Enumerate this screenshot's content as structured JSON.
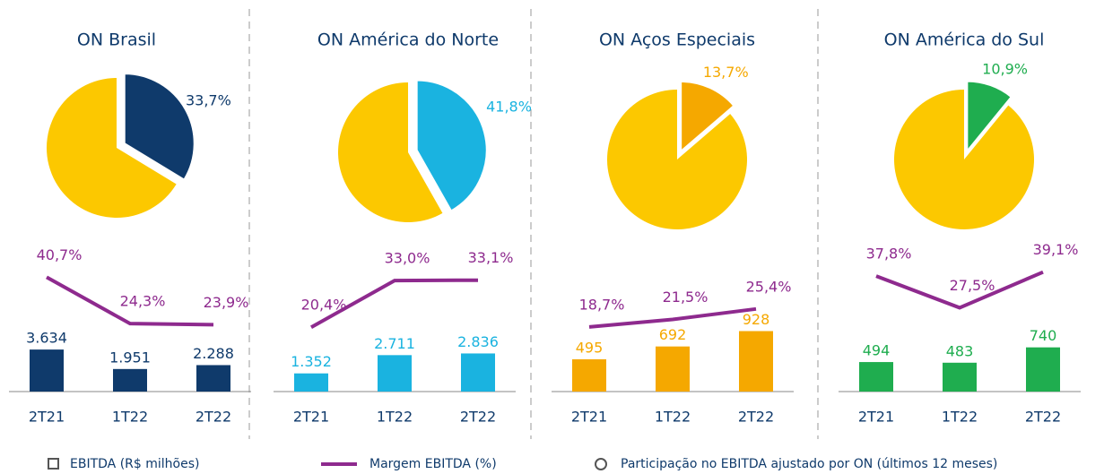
{
  "chart_data": [
    {
      "type": "pie",
      "title": "ON Brasil",
      "values": [
        33.7
      ],
      "value_labels": [
        "33,7%"
      ],
      "color": "#0f3a6b",
      "rest_color": "#fcc800"
    },
    {
      "type": "line",
      "values": [
        40.7,
        24.3,
        23.9
      ],
      "value_labels": [
        "40,7%",
        "24,3%",
        "23,9%"
      ],
      "color": "#8e2a8e",
      "ylim": [
        12,
        50
      ]
    },
    {
      "type": "bar",
      "categories": [
        "2T21",
        "1T22",
        "2T22"
      ],
      "values": [
        3634,
        1951,
        2288
      ],
      "value_labels": [
        "3.634",
        "1.951",
        "2.288"
      ],
      "color": "#0f3a6b",
      "ylim": [
        0,
        9300
      ]
    },
    {
      "type": "pie",
      "title": "ON América do Norte",
      "values": [
        41.8
      ],
      "value_labels": [
        "41,8%"
      ],
      "color": "#1ab3e0",
      "rest_color": "#fcc800"
    },
    {
      "type": "line",
      "values": [
        20.4,
        33.0,
        33.1
      ],
      "value_labels": [
        "20,4%",
        "33,0%",
        "33,1%"
      ],
      "color": "#8e2a8e",
      "ylim": [
        12,
        41
      ]
    },
    {
      "type": "bar",
      "categories": [
        "2T21",
        "1T22",
        "2T22"
      ],
      "values": [
        1352,
        2711,
        2836
      ],
      "value_labels": [
        "1.352",
        "2.711",
        "2.836"
      ],
      "color": "#1ab3e0",
      "ylim": [
        0,
        8000
      ]
    },
    {
      "type": "pie",
      "title": "ON Aços Especiais",
      "values": [
        13.7
      ],
      "value_labels": [
        "13,7%"
      ],
      "color": "#f5a800",
      "rest_color": "#fcc800"
    },
    {
      "type": "line",
      "values": [
        18.7,
        21.5,
        25.4
      ],
      "value_labels": [
        "18,7%",
        "21,5%",
        "25,4%"
      ],
      "color": "#8e2a8e",
      "ylim": [
        7,
        47
      ]
    },
    {
      "type": "bar",
      "categories": [
        "2T21",
        "1T22",
        "2T22"
      ],
      "values": [
        495,
        692,
        928
      ],
      "color": "#f5a800",
      "ylim": [
        0,
        1650
      ]
    },
    {
      "type": "pie",
      "title": "ON América do Sul",
      "values": [
        10.9
      ],
      "value_labels": [
        "10,9%"
      ],
      "color": "#1fad4f",
      "rest_color": "#fcc800"
    },
    {
      "type": "line",
      "values": [
        37.8,
        27.5,
        39.1
      ],
      "value_labels": [
        "37,8%",
        "27,5%",
        "39,1%"
      ],
      "color": "#8e2a8e",
      "ylim": [
        11,
        46
      ]
    },
    {
      "type": "bar",
      "categories": [
        "2T21",
        "1T22",
        "2T22"
      ],
      "values": [
        494,
        483,
        740
      ],
      "color": "#1fad4f",
      "ylim": [
        0,
        1800
      ]
    }
  ],
  "legend": [
    "EBITDA (R$ milhões)",
    "Margem EBITDA (%)",
    "Participação no EBITDA ajustado por ON (últimos 12 meses)"
  ]
}
